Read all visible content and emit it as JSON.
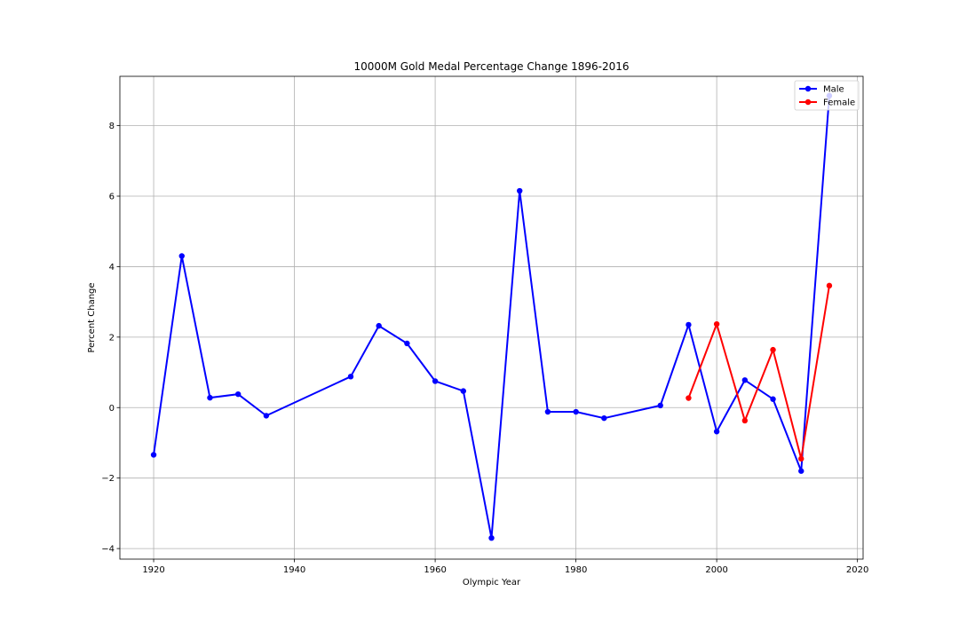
{
  "chart_data": {
    "type": "line",
    "title": "10000M Gold Medal Percentage Change 1896-2016",
    "xlabel": "Olympic Year",
    "ylabel": "Percent Change",
    "xlim": [
      1915.2,
      2020.8
    ],
    "ylim": [
      -4.3,
      9.4
    ],
    "xticks": [
      1920,
      1940,
      1960,
      1980,
      2000,
      2020
    ],
    "yticks": [
      -4,
      -2,
      0,
      2,
      4,
      6,
      8
    ],
    "ytick_labels": [
      "−4",
      "−2",
      "0",
      "2",
      "4",
      "6",
      "8"
    ],
    "grid": true,
    "legend_position": "top-right",
    "series": [
      {
        "name": "Male",
        "color": "#0000ff",
        "x": [
          1920,
          1924,
          1928,
          1932,
          1936,
          1948,
          1952,
          1956,
          1960,
          1964,
          1968,
          1972,
          1976,
          1980,
          1984,
          1992,
          1996,
          2000,
          2004,
          2008,
          2012,
          2016
        ],
        "y": [
          -1.34,
          4.3,
          0.28,
          0.38,
          -0.23,
          0.88,
          2.32,
          1.82,
          0.75,
          0.47,
          -3.7,
          6.15,
          -0.12,
          -0.12,
          -0.3,
          0.06,
          2.35,
          -0.68,
          0.78,
          0.24,
          -1.8,
          8.85
        ]
      },
      {
        "name": "Female",
        "color": "#ff0000",
        "x": [
          1996,
          2000,
          2004,
          2008,
          2012,
          2016
        ],
        "y": [
          0.27,
          2.37,
          -0.37,
          1.64,
          -1.45,
          3.46
        ]
      }
    ]
  }
}
